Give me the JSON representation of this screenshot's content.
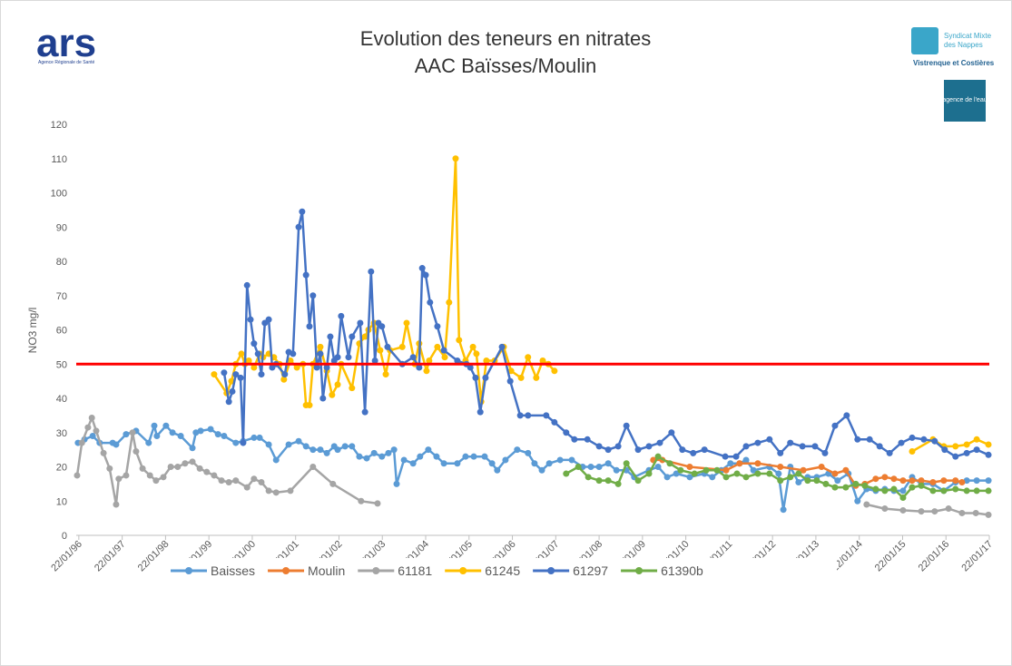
{
  "chart_data": {
    "type": "line",
    "title": "Evolution des teneurs en nitrates",
    "subtitle": "AAC Baïsses/Moulin",
    "y_label": "NO3 mg/l",
    "logos": {
      "left": "ars",
      "left_caption": "Agence Régionale de Santé",
      "right_line1": "Syndicat Mixte",
      "right_line2": "des Nappes",
      "right_line3": "Vistrenque et Costières",
      "right_badge": "agence de l'eau"
    },
    "xlim": [
      1996,
      2017.06
    ],
    "ylim": [
      0,
      120
    ],
    "yticks": [
      0,
      10,
      20,
      30,
      40,
      50,
      60,
      70,
      80,
      90,
      100,
      110,
      120
    ],
    "xticks": [
      {
        "value": 1996.06,
        "label": "22/01/96"
      },
      {
        "value": 1997.06,
        "label": "22/01/97"
      },
      {
        "value": 1998.06,
        "label": "22/01/98"
      },
      {
        "value": 1999.06,
        "label": "22/01/99"
      },
      {
        "value": 2000.06,
        "label": "22/01/00"
      },
      {
        "value": 2001.06,
        "label": "22/01/01"
      },
      {
        "value": 2002.06,
        "label": "22/01/02"
      },
      {
        "value": 2003.06,
        "label": "22/01/03"
      },
      {
        "value": 2004.06,
        "label": "22/01/04"
      },
      {
        "value": 2005.06,
        "label": "22/01/05"
      },
      {
        "value": 2006.06,
        "label": "22/01/06"
      },
      {
        "value": 2007.06,
        "label": "22/01/07"
      },
      {
        "value": 2008.06,
        "label": "22/01/08"
      },
      {
        "value": 2009.06,
        "label": "22/01/09"
      },
      {
        "value": 2010.06,
        "label": "22/01/10"
      },
      {
        "value": 2011.06,
        "label": "22/01/11"
      },
      {
        "value": 2012.06,
        "label": "22/01/12"
      },
      {
        "value": 2013.06,
        "label": "22/01/13"
      },
      {
        "value": 2014.06,
        "label": "22/01/14"
      },
      {
        "value": 2015.06,
        "label": "22/01/15"
      },
      {
        "value": 2016.06,
        "label": "22/01/16"
      },
      {
        "value": 2017.06,
        "label": "22/01/17"
      }
    ],
    "threshold": {
      "value": 50,
      "color": "#ff0000"
    },
    "series": [
      {
        "name": "Baisses",
        "color": "#5b9bd5",
        "x": [
          1996.04,
          1996.19,
          1996.38,
          1996.54,
          1996.84,
          1996.92,
          1997.15,
          1997.38,
          1997.67,
          1997.8,
          1997.86,
          1998.07,
          1998.22,
          1998.41,
          1998.68,
          1998.76,
          1998.87,
          1999.1,
          1999.27,
          1999.41,
          1999.68,
          1999.85,
          2000.1,
          2000.23,
          2000.44,
          2000.61,
          2000.9,
          2001.13,
          2001.3,
          2001.46,
          2001.63,
          2001.78,
          2001.95,
          2002.03,
          2002.2,
          2002.36,
          2002.53,
          2002.7,
          2002.87,
          2003.05,
          2003.2,
          2003.33,
          2003.39,
          2003.56,
          2003.77,
          2003.93,
          2004.12,
          2004.31,
          2004.48,
          2004.79,
          2004.98,
          2005.17,
          2005.42,
          2005.59,
          2005.71,
          2005.9,
          2006.17,
          2006.42,
          2006.57,
          2006.74,
          2006.91,
          2007.16,
          2007.43,
          2007.68,
          2007.87,
          2008.06,
          2008.27,
          2008.46,
          2008.69,
          2008.87,
          2009.21,
          2009.42,
          2009.63,
          2009.84,
          2010.15,
          2010.49,
          2010.67,
          2010.88,
          2011.09,
          2011.3,
          2011.45,
          2011.62,
          2011.99,
          2012.2,
          2012.31,
          2012.47,
          2012.66,
          2012.87,
          2013.08,
          2013.35,
          2013.56,
          2013.81,
          2014.02,
          2014.23,
          2014.44,
          2014.65,
          2014.86,
          2015.07,
          2015.28,
          2015.49,
          2015.76,
          2016.01,
          2016.28,
          2016.54,
          2016.77,
          2017.04
        ],
        "values": [
          27,
          28,
          29,
          27,
          27,
          26.5,
          29.5,
          30.5,
          27,
          32,
          29,
          32,
          30,
          29,
          25.5,
          30,
          30.5,
          31,
          29.5,
          29,
          27,
          27.5,
          28.5,
          28.5,
          26.5,
          22,
          26.5,
          27.5,
          26,
          25,
          25,
          24,
          26,
          25,
          26,
          26,
          23,
          22.5,
          24,
          23,
          24,
          25,
          15,
          22,
          21,
          23,
          25,
          23,
          21,
          21,
          23,
          23,
          23,
          21,
          19,
          22,
          25,
          24,
          21,
          19,
          21,
          22,
          22,
          20,
          20,
          20,
          21,
          19,
          19,
          17,
          19,
          20,
          17,
          18,
          17,
          18,
          17,
          19,
          21,
          21,
          22,
          19,
          20,
          18,
          7.5,
          20,
          15.5,
          17,
          17,
          18,
          16,
          18,
          10,
          13.5,
          13,
          13.5,
          13,
          13,
          17,
          15,
          15,
          13,
          15.5,
          16,
          16,
          16
        ]
      },
      {
        "name": "Moulin",
        "color": "#ed7d31",
        "x": [
          2009.31,
          2009.52,
          2010.15,
          2010.99,
          2011.3,
          2011.72,
          2012.24,
          2012.77,
          2013.19,
          2013.5,
          2013.75,
          2013.98,
          2014.19,
          2014.44,
          2014.65,
          2014.86,
          2015.07,
          2015.28,
          2015.49,
          2015.76,
          2016.01,
          2016.28,
          2016.43
        ],
        "values": [
          22,
          22,
          20,
          19,
          21,
          21,
          20,
          19,
          20,
          18,
          19,
          14.5,
          15,
          16.5,
          17,
          16.5,
          16,
          16,
          16,
          15.5,
          16,
          16,
          15.5
        ]
      },
      {
        "name": "61181",
        "color": "#a5a5a5",
        "x": [
          1996.02,
          1996.13,
          1996.27,
          1996.36,
          1996.46,
          1996.63,
          1996.77,
          1996.92,
          1996.98,
          1997.15,
          1997.3,
          1997.38,
          1997.53,
          1997.7,
          1997.84,
          1998.01,
          1998.18,
          1998.34,
          1998.51,
          1998.68,
          1998.85,
          1999.01,
          1999.18,
          1999.35,
          1999.52,
          1999.68,
          1999.94,
          2000.1,
          2000.27,
          2000.44,
          2000.61,
          2000.94,
          2001.46,
          2001.92,
          2002.57,
          2002.95,
          null,
          2014.23,
          2014.65,
          2015.07,
          2015.49,
          2015.8,
          2016.12,
          2016.43,
          2016.75,
          2017.04
        ],
        "values": [
          17.5,
          27,
          31.5,
          34.3,
          30.5,
          24,
          19.5,
          9,
          16.5,
          17.5,
          30,
          24.5,
          19.5,
          17.5,
          16,
          17,
          20,
          20,
          21,
          21.5,
          19.5,
          18.5,
          17.5,
          16,
          15.5,
          16,
          14,
          16.5,
          15.5,
          13,
          12.5,
          13,
          20,
          15,
          10,
          9.3,
          null,
          9,
          7.8,
          7.3,
          7,
          7,
          7.8,
          6.5,
          6.5,
          6
        ]
      },
      {
        "name": "61245",
        "color": "#ffc000",
        "x": [
          1999.18,
          1999.47,
          1999.58,
          1999.68,
          1999.81,
          1999.89,
          1999.98,
          2000.1,
          2000.23,
          2000.31,
          2000.44,
          2000.56,
          2000.69,
          2000.79,
          2000.94,
          2001.09,
          2001.23,
          2001.3,
          2001.38,
          2001.46,
          2001.63,
          2001.78,
          2001.9,
          2002.03,
          2002.11,
          2002.36,
          2002.53,
          2002.66,
          2002.74,
          2002.87,
          2003.01,
          2003.14,
          2003.24,
          2003.52,
          2003.62,
          2003.81,
          2003.91,
          2004.08,
          2004.14,
          2004.33,
          2004.5,
          2004.6,
          2004.75,
          2004.83,
          2004.98,
          2005.15,
          2005.23,
          2005.34,
          2005.46,
          2005.65,
          2005.86,
          2006.03,
          2006.26,
          2006.42,
          2006.61,
          2006.76,
          2006.89,
          2007.03,
          null,
          2015.28,
          2015.76,
          2016.01,
          2016.28,
          2016.54,
          2016.77,
          2017.04
        ],
        "values": [
          47,
          41.5,
          45,
          50,
          53,
          50,
          51,
          49,
          53,
          52,
          53,
          52,
          50,
          45.5,
          51,
          49,
          50,
          38,
          38,
          50,
          55,
          48,
          41,
          44,
          50,
          43,
          56,
          58,
          60,
          62,
          54,
          47,
          54,
          55,
          62,
          50,
          56,
          48,
          51,
          55,
          52,
          68,
          110,
          57,
          51,
          55,
          53,
          39,
          51,
          51,
          55,
          48,
          46,
          52,
          46,
          51,
          50,
          48,
          null,
          24.5,
          28,
          26,
          26,
          26.5,
          28,
          26.5
        ]
      },
      {
        "name": "61297",
        "color": "#4472c4",
        "x": [
          1999.41,
          1999.52,
          1999.6,
          1999.68,
          1999.79,
          1999.85,
          1999.94,
          2000.02,
          2000.1,
          2000.19,
          2000.27,
          2000.35,
          2000.44,
          2000.52,
          2000.61,
          2000.81,
          2000.9,
          2001.0,
          2001.13,
          2001.21,
          2001.3,
          2001.38,
          2001.46,
          2001.55,
          2001.63,
          2001.69,
          2001.78,
          2001.86,
          2001.95,
          2002.03,
          2002.11,
          2002.28,
          2002.36,
          2002.55,
          2002.66,
          2002.8,
          2002.89,
          2002.97,
          2003.05,
          2003.18,
          2003.52,
          2003.77,
          2003.91,
          2003.98,
          2004.06,
          2004.16,
          2004.33,
          2004.48,
          2004.79,
          2005.0,
          2005.09,
          2005.21,
          2005.32,
          2005.44,
          2005.82,
          2006.01,
          2006.24,
          2006.42,
          2006.84,
          2007.03,
          2007.3,
          2007.49,
          2007.79,
          2008.06,
          2008.27,
          2008.5,
          2008.69,
          2008.96,
          2009.21,
          2009.46,
          2009.73,
          2009.98,
          2010.23,
          2010.49,
          2010.97,
          2011.22,
          2011.45,
          2011.72,
          2011.99,
          2012.24,
          2012.47,
          2012.75,
          2013.04,
          2013.27,
          2013.5,
          2013.77,
          2014.02,
          2014.3,
          2014.53,
          2014.76,
          2015.03,
          2015.28,
          2015.55,
          2015.8,
          2016.03,
          2016.28,
          2016.54,
          2016.77,
          2017.04
        ],
        "values": [
          47.5,
          39,
          42,
          47,
          46,
          27,
          73,
          63,
          56,
          53,
          47,
          62,
          63,
          49,
          50,
          47,
          53.5,
          53,
          90,
          94.5,
          76,
          61,
          70,
          49,
          53,
          40,
          49,
          58,
          51,
          52,
          64,
          52,
          58,
          62,
          36,
          77,
          51,
          62,
          61,
          55,
          50,
          52,
          49,
          78,
          76,
          68,
          61,
          54,
          51,
          50,
          49,
          46,
          36,
          46,
          55,
          45,
          35,
          35,
          35,
          33,
          30,
          28,
          28,
          26,
          25,
          26,
          32,
          25,
          26,
          27,
          30,
          25,
          24,
          25,
          23,
          23,
          26,
          27,
          28,
          24,
          27,
          26,
          26,
          24,
          32,
          35,
          28,
          28,
          26,
          24,
          27,
          28.5,
          28,
          27.5,
          25,
          23,
          24,
          25,
          23.5
        ]
      },
      {
        "name": "61390b",
        "color": "#70ad47",
        "x": [
          2007.3,
          2007.58,
          2007.81,
          2008.06,
          2008.27,
          2008.5,
          2008.69,
          2008.96,
          2009.21,
          2009.42,
          2009.69,
          2009.94,
          2010.26,
          2010.53,
          2010.78,
          2010.99,
          2011.24,
          2011.45,
          2011.72,
          2011.99,
          2012.24,
          2012.47,
          2012.66,
          2012.87,
          2013.08,
          2013.29,
          2013.5,
          2013.75,
          2013.98,
          2014.19,
          2014.44,
          2014.65,
          2014.86,
          2015.07,
          2015.28,
          2015.49,
          2015.76,
          2016.01,
          2016.28,
          2016.54,
          2016.77,
          2017.04
        ],
        "values": [
          18,
          20,
          17,
          16,
          16,
          15,
          21,
          16,
          18,
          23,
          21,
          19,
          18,
          19,
          19,
          17,
          18,
          17,
          18,
          18,
          16,
          17,
          18,
          16,
          16,
          15,
          14,
          14,
          15,
          14.5,
          13.5,
          13,
          13.5,
          11,
          14,
          14.5,
          13,
          13,
          13.5,
          13,
          13,
          13
        ]
      }
    ]
  }
}
